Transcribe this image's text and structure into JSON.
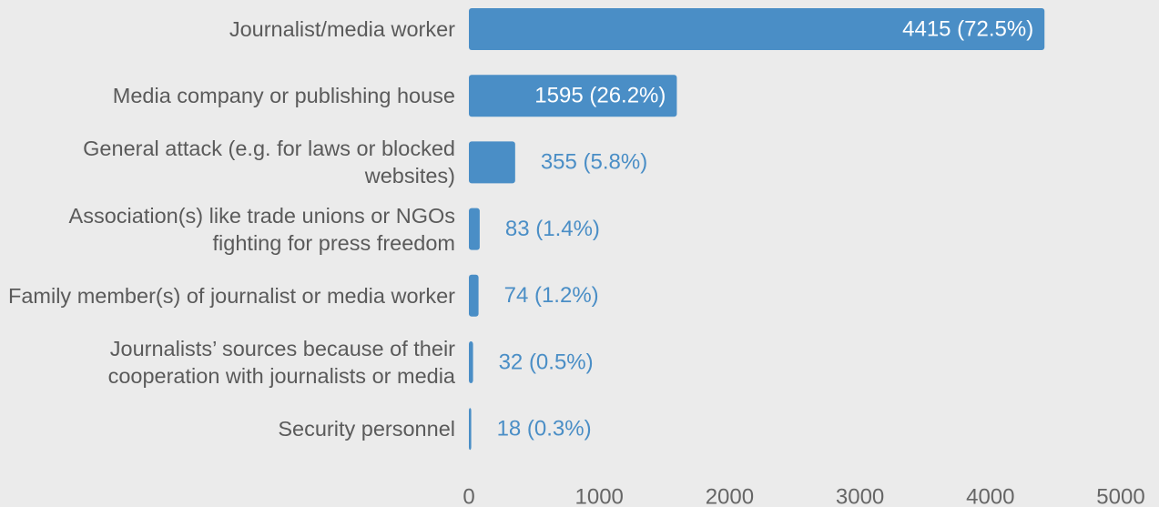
{
  "chart_data": {
    "type": "bar",
    "orientation": "horizontal",
    "categories": [
      "Journalist/media worker",
      "Media company or publishing house",
      "General attack (e.g. for laws or blocked websites)",
      "Association(s) like trade unions or NGOs fighting for press freedom",
      "Family member(s) of journalist or media worker",
      "Journalists’ sources because of their cooperation with journalists or media",
      "Security personnel"
    ],
    "values": [
      4415,
      1595,
      355,
      83,
      74,
      32,
      18
    ],
    "value_labels": [
      "4415 (72.5%)",
      "1595 (26.2%)",
      "355 (5.8%)",
      "83 (1.4%)",
      "74 (1.2%)",
      "32 (0.5%)",
      "18 (0.3%)"
    ],
    "color": "#4a8ec6",
    "xlim": [
      0,
      5000
    ],
    "xticks": [
      0,
      1000,
      2000,
      3000,
      4000,
      5000
    ],
    "grid": false
  }
}
